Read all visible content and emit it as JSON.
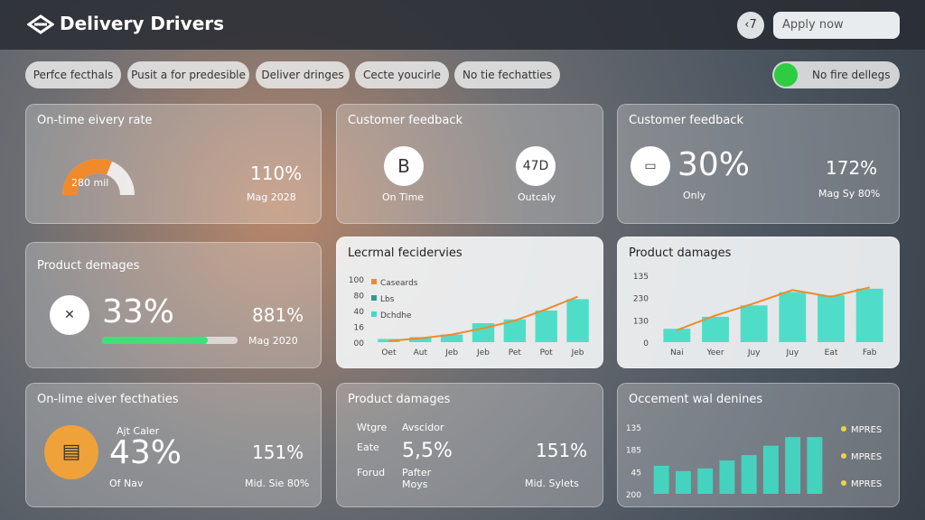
{
  "header": {
    "brand": "Delivery Drivers",
    "badge": "‹7",
    "search": "Apply now"
  },
  "filters": [
    "Perfce fecthals",
    "Pusit a for predesible",
    "Deliver dringes",
    "Cecte youcirle",
    "No tie fechatties"
  ],
  "toggle": "No fire dellegs",
  "cards": [
    {
      "title": "On-time eivery rate",
      "gauge_label": "280 mil",
      "gauge": 62,
      "value": "110%",
      "caption": "Mag 2028"
    },
    {
      "title": "Customer feedback",
      "items": [
        {
          "icon": "B",
          "label": "On Time"
        },
        {
          "icon": "47D",
          "label": "Outcaly"
        }
      ]
    },
    {
      "title": "Customer feedback",
      "value": "30%",
      "value_caption": "Only",
      "side": "172%",
      "side_caption": "Mag Sy 80%"
    },
    {
      "title": "Product demages",
      "value": "33%",
      "progress": 78,
      "side": "881%",
      "side_caption": "Mag 2020"
    },
    {
      "title": "Lecrmal fecidervies",
      "legend": [
        "Caseards",
        "Lbs",
        "Dchdhe"
      ],
      "yaxis": [
        "100",
        "80",
        "40",
        "16",
        "00"
      ],
      "categories": [
        "Oet",
        "Aut",
        "Jeb",
        "Jeb",
        "Pet",
        "Pot",
        "Jeb"
      ],
      "ylim": [
        0,
        100
      ],
      "bars": [
        5,
        8,
        12,
        30,
        36,
        50,
        68
      ],
      "line": [
        2,
        6,
        12,
        22,
        34,
        52,
        72
      ]
    },
    {
      "title": "Product damages",
      "yaxis": [
        "135",
        "230",
        "130",
        "0"
      ],
      "categories": [
        "Nai",
        "Yeer",
        "Juy",
        "Juy",
        "Eat",
        "Fab"
      ],
      "ylim": [
        0,
        100
      ],
      "bars": [
        20,
        38,
        55,
        75,
        70,
        80
      ],
      "line": [
        18,
        40,
        58,
        78,
        68,
        82
      ]
    },
    {
      "title": "On-lime eiver fecthaties",
      "note": "Ajt Caler",
      "value": "43%",
      "value_caption": "Of Nav",
      "side": "151%",
      "side_caption": "Mid. Sie 80%"
    },
    {
      "title": "Product damages",
      "labels": [
        "Wtgre",
        "Eate",
        "Forud"
      ],
      "sub_top": "Avscidor",
      "value": "5,5%",
      "sub_bottom": "Pafter Moys",
      "side": "151%",
      "side_caption": "Mid. Sylets"
    },
    {
      "title": "Occement wal denines",
      "yaxis": [
        "135",
        "185",
        "45",
        "200"
      ],
      "legend": [
        "MPRES",
        "MPRES",
        "MPRES"
      ],
      "ylim": [
        0,
        100
      ],
      "bars": [
        42,
        34,
        38,
        50,
        58,
        72,
        85,
        85
      ]
    }
  ]
}
